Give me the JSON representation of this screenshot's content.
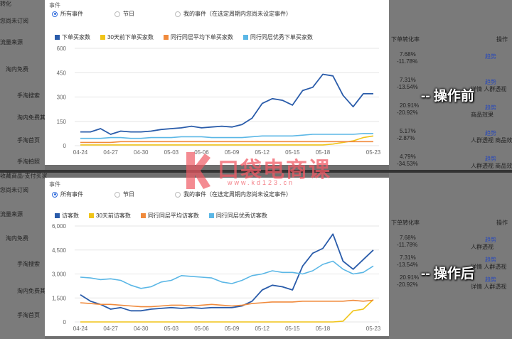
{
  "background": {
    "left_fragments": [
      "转化",
      "您尚未订阅",
      "流量来源",
      "淘内免费",
      "手淘搜索",
      "淘内免费其",
      "手淘首页",
      "手淘拍照"
    ],
    "left_fragments_bottom": [
      "收藏商品-支付买家",
      "您尚未订阅",
      "流量来源",
      "淘内免费",
      "手淘搜索",
      "淘内免费其",
      "手淘首页"
    ],
    "right_top": {
      "header_label": "下单转化率",
      "header_action": "操作",
      "rows": [
        {
          "rate": "7.68%",
          "change": "-11.78%",
          "action": "趋势",
          "extra": ""
        },
        {
          "rate": "7.31%",
          "change": "-13.54%",
          "action": "趋势",
          "extra": "详情 人群透视"
        },
        {
          "rate": "20.91%",
          "change": "-20.92%",
          "action": "趋势",
          "extra": "商品效果"
        },
        {
          "rate": "5.17%",
          "change": "-2.87%",
          "action": "趋势",
          "extra": "人群透视 商品效果"
        },
        {
          "rate": "4.79%",
          "change": "-34.53%",
          "action": "趋势",
          "extra": "人群透视 商品效果"
        }
      ]
    },
    "right_bottom": {
      "header_label": "下单转化率",
      "header_action": "操作",
      "rows": [
        {
          "rate": "7.68%",
          "change": "-11.78%",
          "action": "趋势",
          "extra": "人群透视"
        },
        {
          "rate": "7.31%",
          "change": "-13.54%",
          "action": "趋势",
          "extra": "详情 人群透视"
        },
        {
          "rate": "20.91%",
          "change": "-20.92%",
          "action": "趋势",
          "extra": "详情 人群透视"
        }
      ]
    }
  },
  "annotations": {
    "before": "-- 操作前",
    "after": "-- 操作后"
  },
  "watermark": {
    "text": "口袋电商课",
    "url": "www.kd123.cn"
  },
  "panels": [
    {
      "events_label": "事件",
      "radios": [
        {
          "label": "所有事件",
          "selected": true
        },
        {
          "label": "节日",
          "selected": false
        },
        {
          "label": "我的事件（在选定周期内您尚未设定事件）",
          "selected": false
        }
      ],
      "legend": [
        {
          "name": "下单买家数",
          "color": "#2a5caa"
        },
        {
          "name": "30天前下单买家数",
          "color": "#f0c419"
        },
        {
          "name": "同行同层平均下单买家数",
          "color": "#f08a3c"
        },
        {
          "name": "同行同层优秀下单买家数",
          "color": "#5bb7e6"
        }
      ],
      "y_ticks": [
        "600",
        "450",
        "300",
        "150",
        "0"
      ],
      "x_ticks": [
        "04-24",
        "04-27",
        "04-30",
        "05-03",
        "05-06",
        "05-09",
        "05-12",
        "05-15",
        "05-18",
        "05-23"
      ]
    },
    {
      "events_label": "事件",
      "radios": [
        {
          "label": "所有事件",
          "selected": true
        },
        {
          "label": "节日",
          "selected": false
        },
        {
          "label": "我的事件（在选定周期内您尚未设定事件）",
          "selected": false
        }
      ],
      "legend": [
        {
          "name": "访客数",
          "color": "#2a5caa"
        },
        {
          "name": "30天前访客数",
          "color": "#f0c419"
        },
        {
          "name": "同行同层平均访客数",
          "color": "#f08a3c"
        },
        {
          "name": "同行同层优秀访客数",
          "color": "#5bb7e6"
        }
      ],
      "y_ticks": [
        "6,000",
        "4,500",
        "3,000",
        "1,500",
        "0"
      ],
      "x_ticks": [
        "04-24",
        "04-27",
        "04-30",
        "05-03",
        "05-06",
        "05-09",
        "05-12",
        "05-15",
        "05-18",
        "05-23"
      ]
    }
  ],
  "chart_data": [
    {
      "type": "line",
      "ylim": [
        0,
        600
      ],
      "grid": true,
      "legend_position": "top",
      "x": [
        "04-24",
        "04-25",
        "04-26",
        "04-27",
        "04-28",
        "04-29",
        "04-30",
        "05-01",
        "05-02",
        "05-03",
        "05-04",
        "05-05",
        "05-06",
        "05-07",
        "05-08",
        "05-09",
        "05-10",
        "05-11",
        "05-12",
        "05-13",
        "05-14",
        "05-15",
        "05-16",
        "05-17",
        "05-18",
        "05-19",
        "05-20",
        "05-21",
        "05-22",
        "05-23"
      ],
      "series": [
        {
          "name": "下单买家数",
          "color": "#2a5caa",
          "values": [
            85,
            85,
            105,
            70,
            90,
            85,
            85,
            90,
            100,
            105,
            110,
            120,
            110,
            115,
            120,
            115,
            130,
            170,
            260,
            290,
            280,
            250,
            340,
            360,
            440,
            430,
            310,
            240,
            320,
            320
          ]
        },
        {
          "name": "30天前下单买家数",
          "color": "#f0c419",
          "values": [
            5,
            5,
            5,
            5,
            5,
            5,
            5,
            5,
            5,
            5,
            5,
            5,
            5,
            5,
            5,
            5,
            5,
            5,
            5,
            5,
            5,
            5,
            5,
            5,
            5,
            10,
            20,
            30,
            50,
            60
          ]
        },
        {
          "name": "同行同层平均下单买家数",
          "color": "#f08a3c",
          "values": [
            20,
            20,
            20,
            20,
            25,
            25,
            25,
            25,
            25,
            25,
            25,
            25,
            25,
            25,
            25,
            25,
            25,
            25,
            25,
            25,
            25,
            25,
            25,
            25,
            25,
            25,
            25,
            25,
            25,
            25
          ]
        },
        {
          "name": "同行同层优秀下单买家数",
          "color": "#5bb7e6",
          "values": [
            45,
            45,
            45,
            50,
            50,
            45,
            45,
            50,
            50,
            50,
            55,
            55,
            55,
            50,
            50,
            50,
            50,
            55,
            60,
            60,
            60,
            60,
            65,
            70,
            70,
            70,
            70,
            70,
            75,
            75
          ]
        }
      ]
    },
    {
      "type": "line",
      "ylim": [
        0,
        6000
      ],
      "grid": true,
      "legend_position": "top",
      "x": [
        "04-24",
        "04-25",
        "04-26",
        "04-27",
        "04-28",
        "04-29",
        "04-30",
        "05-01",
        "05-02",
        "05-03",
        "05-04",
        "05-05",
        "05-06",
        "05-07",
        "05-08",
        "05-09",
        "05-10",
        "05-11",
        "05-12",
        "05-13",
        "05-14",
        "05-15",
        "05-16",
        "05-17",
        "05-18",
        "05-19",
        "05-20",
        "05-21",
        "05-22",
        "05-23"
      ],
      "series": [
        {
          "name": "访客数",
          "color": "#2a5caa",
          "values": [
            1700,
            1300,
            1100,
            800,
            900,
            700,
            700,
            800,
            850,
            900,
            850,
            900,
            850,
            900,
            900,
            900,
            1000,
            1300,
            2000,
            2300,
            2200,
            2000,
            3500,
            4300,
            4600,
            5500,
            3800,
            3300,
            3900,
            4500
          ]
        },
        {
          "name": "30天前访客数",
          "color": "#f0c419",
          "values": [
            0,
            0,
            0,
            0,
            0,
            0,
            0,
            0,
            0,
            0,
            0,
            0,
            0,
            0,
            0,
            0,
            0,
            0,
            0,
            0,
            0,
            0,
            0,
            0,
            0,
            0,
            50,
            700,
            800,
            1400
          ]
        },
        {
          "name": "同行同层平均访客数",
          "color": "#f08a3c",
          "values": [
            1200,
            1150,
            1100,
            1100,
            1050,
            1000,
            950,
            950,
            1000,
            1050,
            1050,
            1000,
            1050,
            1100,
            1050,
            1000,
            1050,
            1150,
            1200,
            1250,
            1250,
            1250,
            1300,
            1300,
            1300,
            1300,
            1300,
            1350,
            1300,
            1350
          ]
        },
        {
          "name": "同行同层优秀访客数",
          "color": "#5bb7e6",
          "values": [
            2800,
            2750,
            2650,
            2700,
            2600,
            2300,
            2100,
            2200,
            2500,
            2600,
            2900,
            2850,
            2800,
            2750,
            2500,
            2400,
            2600,
            2900,
            3000,
            3200,
            3100,
            3100,
            3000,
            3200,
            3600,
            3800,
            3300,
            3000,
            3100,
            3500
          ]
        }
      ]
    }
  ]
}
